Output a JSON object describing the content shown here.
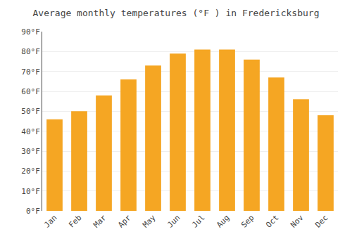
{
  "chart_data": {
    "type": "bar",
    "title": "Average monthly temperatures (°F ) in Fredericksburg",
    "categories": [
      "Jan",
      "Feb",
      "Mar",
      "Apr",
      "May",
      "Jun",
      "Jul",
      "Aug",
      "Sep",
      "Oct",
      "Nov",
      "Dec"
    ],
    "values": [
      46,
      50,
      58,
      66,
      73,
      79,
      81,
      81,
      76,
      67,
      56,
      48
    ],
    "color": "#F5A623",
    "ylim": [
      0,
      90
    ],
    "yticks": [
      {
        "value": 0,
        "label": "0°F"
      },
      {
        "value": 10,
        "label": "10°F"
      },
      {
        "value": 20,
        "label": "20°F"
      },
      {
        "value": 30,
        "label": "30°F"
      },
      {
        "value": 40,
        "label": "40°F"
      },
      {
        "value": 50,
        "label": "50°F"
      },
      {
        "value": 60,
        "label": "60°F"
      },
      {
        "value": 70,
        "label": "70°F"
      },
      {
        "value": 80,
        "label": "80°F"
      },
      {
        "value": 90,
        "label": "90°F"
      }
    ],
    "grid": true
  }
}
